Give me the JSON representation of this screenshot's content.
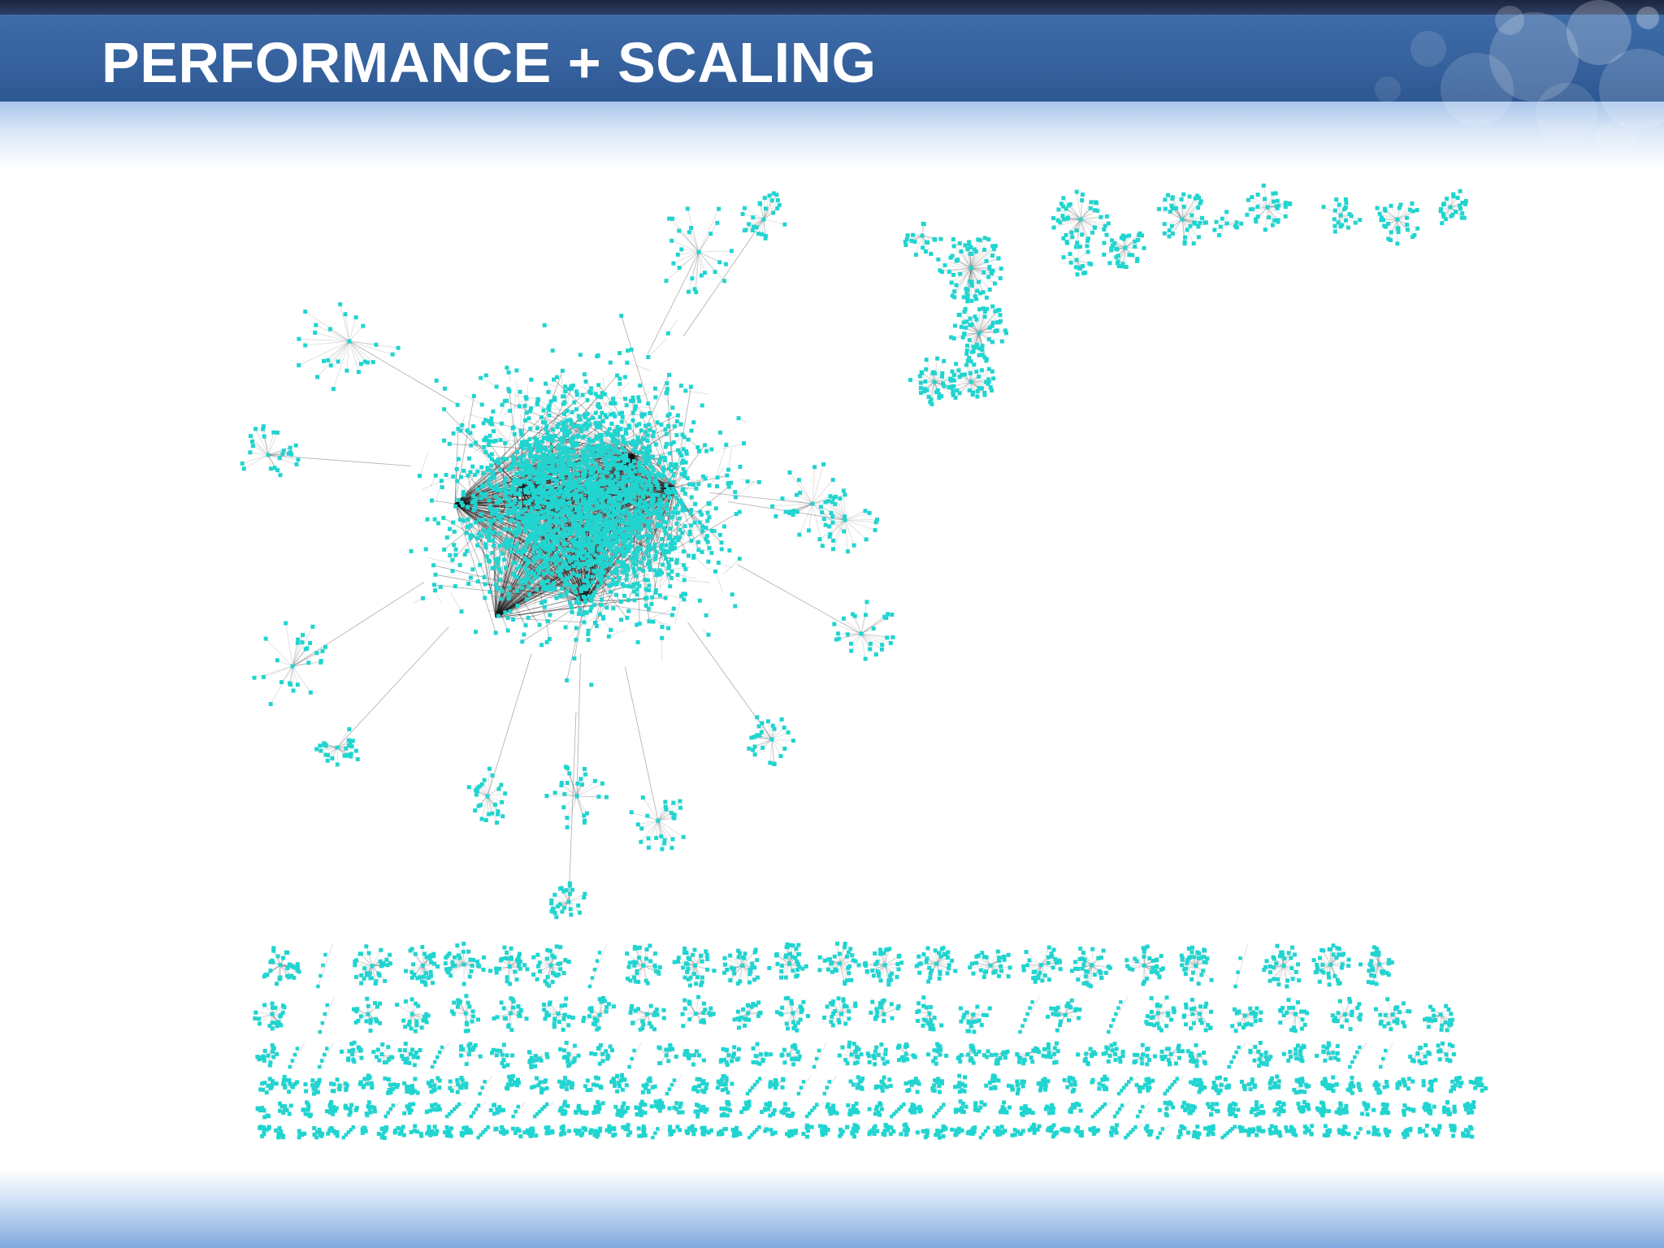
{
  "slide": {
    "title": "PERFORMANCE + SCALING"
  },
  "colors": {
    "header": "#3a67a4",
    "node": "#21d4d0",
    "edge": "#333333",
    "footer": "#7fa8dc"
  },
  "figure": {
    "kind": "network-graph",
    "description_icon": "network-graph-visualization"
  }
}
